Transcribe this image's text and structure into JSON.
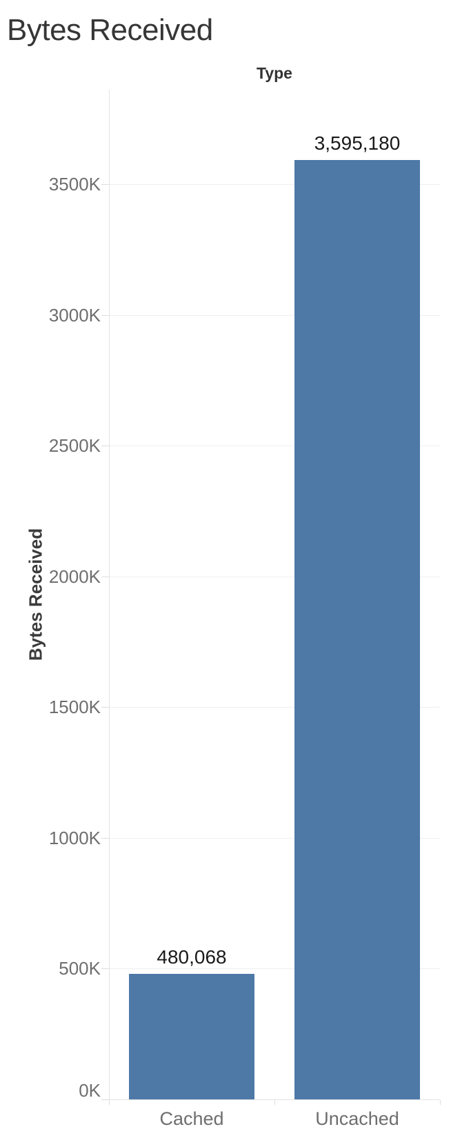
{
  "page": {
    "title": "Bytes Received"
  },
  "chart_data": {
    "type": "bar",
    "title": "Bytes Received",
    "column_header": "Type",
    "ylabel": "Bytes Received",
    "xlabel": "",
    "categories": [
      "Cached",
      "Uncached"
    ],
    "values": [
      480068,
      3595180
    ],
    "value_labels": [
      "480,068",
      "3,595,180"
    ],
    "yticks": [
      {
        "value": 0,
        "label": "0K"
      },
      {
        "value": 500000,
        "label": "500K"
      },
      {
        "value": 1000000,
        "label": "1000K"
      },
      {
        "value": 1500000,
        "label": "1500K"
      },
      {
        "value": 2000000,
        "label": "2000K"
      },
      {
        "value": 2500000,
        "label": "2500K"
      },
      {
        "value": 3000000,
        "label": "3000K"
      },
      {
        "value": 3500000,
        "label": "3500K"
      }
    ],
    "ylim": [
      0,
      3864000
    ],
    "grid": true,
    "legend": false,
    "bar_color": "#4e79a7"
  },
  "colors": {
    "bar": "#4e79a7",
    "title_text": "#363636",
    "header_text": "#333333",
    "axis_title_text": "#3c3c3c",
    "tick_label_text": "#6e6e6e",
    "value_label_text": "#1a1a1a",
    "gridline": "#efefef",
    "axis_line": "#e3e3e3",
    "tick_mark": "#dddddd",
    "background": "#ffffff"
  }
}
